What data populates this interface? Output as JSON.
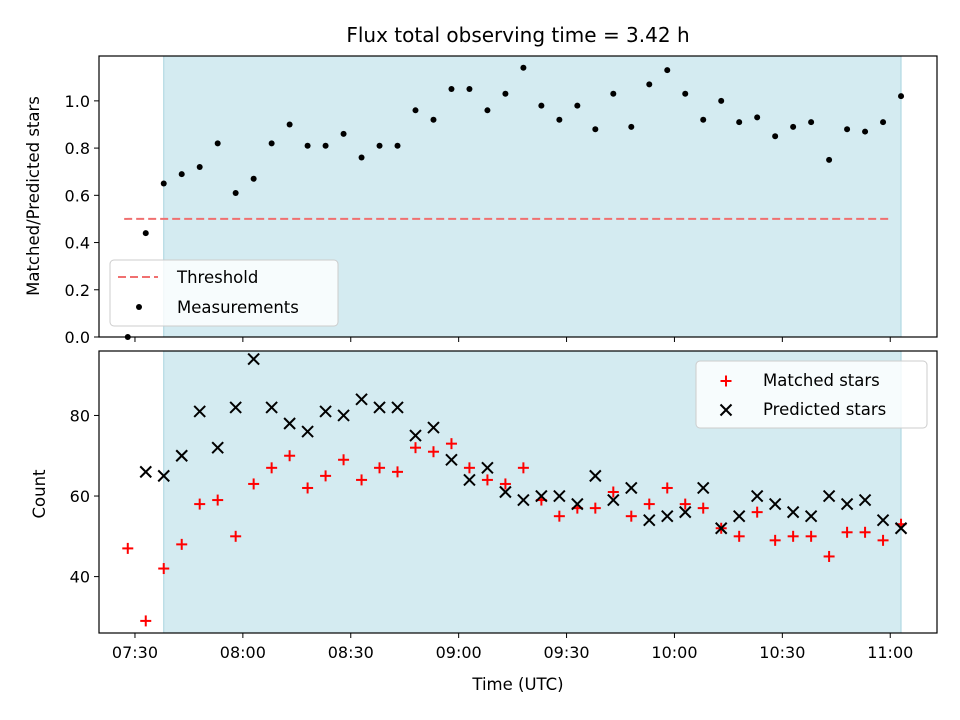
{
  "colors": {
    "shade": "#d4ebf1",
    "threshold": "#f07070",
    "measurement": "#000000",
    "matched": "#ff0000",
    "predicted": "#000000"
  },
  "chart_data": [
    {
      "type": "scatter",
      "title": "Flux total observing time = 3.42 h",
      "xlabel": "",
      "ylabel": "Matched/Predicted stars",
      "ylim": [
        0.0,
        1.19
      ],
      "yticks": [
        "0.0",
        "0.2",
        "0.4",
        "0.6",
        "0.8",
        "1.0"
      ],
      "shaded_span": [
        "07:38",
        "11:03"
      ],
      "threshold": {
        "name": "Threshold",
        "value": 0.5,
        "x_range": [
          "07:27",
          "11:00"
        ]
      },
      "legend": {
        "placement": "lower-left",
        "entries": [
          "Threshold",
          "Measurements"
        ]
      },
      "series": [
        {
          "name": "Measurements",
          "x": [
            "07:28",
            "07:33",
            "07:38",
            "07:43",
            "07:48",
            "07:53",
            "07:58",
            "08:03",
            "08:08",
            "08:13",
            "08:18",
            "08:23",
            "08:28",
            "08:33",
            "08:38",
            "08:43",
            "08:48",
            "08:53",
            "08:58",
            "09:03",
            "09:08",
            "09:13",
            "09:18",
            "09:23",
            "09:28",
            "09:33",
            "09:38",
            "09:43",
            "09:48",
            "09:53",
            "09:58",
            "10:03",
            "10:08",
            "10:13",
            "10:18",
            "10:23",
            "10:28",
            "10:33",
            "10:38",
            "10:43",
            "10:48",
            "10:53",
            "10:58",
            "11:03"
          ],
          "y": [
            0.0,
            0.44,
            0.65,
            0.69,
            0.72,
            0.82,
            0.61,
            0.67,
            0.82,
            0.9,
            0.81,
            0.81,
            0.86,
            0.76,
            0.81,
            0.81,
            0.96,
            0.92,
            1.05,
            1.05,
            0.96,
            1.03,
            1.14,
            0.98,
            0.92,
            0.98,
            0.88,
            1.03,
            0.89,
            1.07,
            1.13,
            1.03,
            0.92,
            1.0,
            0.91,
            0.93,
            0.85,
            0.89,
            0.91,
            0.75,
            0.88,
            0.87,
            0.91,
            1.02
          ]
        }
      ]
    },
    {
      "type": "scatter",
      "title": "",
      "xlabel": "Time (UTC)",
      "ylabel": "Count",
      "ylim": [
        26,
        96
      ],
      "yticks": [
        "40",
        "60",
        "80"
      ],
      "xticks": [
        "07:30",
        "08:00",
        "08:30",
        "09:00",
        "09:30",
        "10:00",
        "10:30",
        "11:00"
      ],
      "xlim": [
        "07:20",
        "11:13"
      ],
      "shaded_span": [
        "07:38",
        "11:03"
      ],
      "legend": {
        "placement": "upper-right",
        "entries": [
          "Matched stars",
          "Predicted stars"
        ]
      },
      "series": [
        {
          "name": "Matched stars",
          "x": [
            "07:28",
            "07:33",
            "07:38",
            "07:43",
            "07:48",
            "07:53",
            "07:58",
            "08:03",
            "08:08",
            "08:13",
            "08:18",
            "08:23",
            "08:28",
            "08:33",
            "08:38",
            "08:43",
            "08:48",
            "08:53",
            "08:58",
            "09:03",
            "09:08",
            "09:13",
            "09:18",
            "09:23",
            "09:28",
            "09:33",
            "09:38",
            "09:43",
            "09:48",
            "09:53",
            "09:58",
            "10:03",
            "10:08",
            "10:13",
            "10:18",
            "10:23",
            "10:28",
            "10:33",
            "10:38",
            "10:43",
            "10:48",
            "10:53",
            "10:58",
            "11:03"
          ],
          "y": [
            47,
            29,
            42,
            48,
            58,
            59,
            50,
            63,
            67,
            70,
            62,
            65,
            69,
            64,
            67,
            66,
            72,
            71,
            73,
            67,
            64,
            63,
            67,
            59,
            55,
            57,
            57,
            61,
            55,
            58,
            62,
            58,
            57,
            52,
            50,
            56,
            49,
            50,
            50,
            45,
            51,
            51,
            49,
            53
          ]
        },
        {
          "name": "Predicted stars",
          "x": [
            "07:33",
            "07:38",
            "07:43",
            "07:48",
            "07:53",
            "07:58",
            "08:03",
            "08:08",
            "08:13",
            "08:18",
            "08:23",
            "08:28",
            "08:33",
            "08:38",
            "08:43",
            "08:48",
            "08:53",
            "08:58",
            "09:03",
            "09:08",
            "09:13",
            "09:18",
            "09:23",
            "09:28",
            "09:33",
            "09:38",
            "09:43",
            "09:48",
            "09:53",
            "09:58",
            "10:03",
            "10:08",
            "10:13",
            "10:18",
            "10:23",
            "10:28",
            "10:33",
            "10:38",
            "10:43",
            "10:48",
            "10:53",
            "10:58",
            "11:03"
          ],
          "y": [
            66,
            65,
            70,
            81,
            72,
            82,
            94,
            82,
            78,
            76,
            81,
            80,
            84,
            82,
            82,
            75,
            77,
            69,
            64,
            67,
            61,
            59,
            60,
            60,
            58,
            65,
            59,
            62,
            54,
            55,
            56,
            62,
            52,
            55,
            60,
            58,
            56,
            55,
            60,
            58,
            59,
            54,
            52
          ]
        }
      ]
    }
  ]
}
